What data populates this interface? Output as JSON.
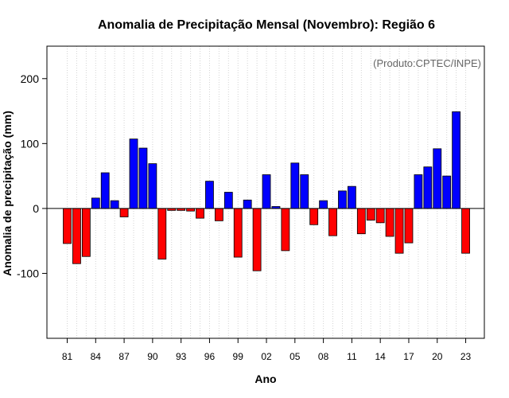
{
  "chart_data": {
    "type": "bar",
    "title": "Anomalia de Precipitação Mensal (Novembro): Região 6",
    "xlabel": "Ano",
    "ylabel": "Anomalia de precipitação (mm)",
    "credit": "(Produto:CPTEC/INPE)",
    "ylim": [
      -200,
      250
    ],
    "yticks": [
      -100,
      0,
      100,
      200
    ],
    "grid": true,
    "categories": [
      "81",
      "82",
      "83",
      "84",
      "85",
      "86",
      "87",
      "88",
      "89",
      "90",
      "91",
      "92",
      "93",
      "94",
      "95",
      "96",
      "97",
      "98",
      "99",
      "00",
      "01",
      "02",
      "03",
      "04",
      "05",
      "06",
      "07",
      "08",
      "09",
      "10",
      "11",
      "12",
      "13",
      "14",
      "15",
      "16",
      "17",
      "18",
      "19",
      "20",
      "21",
      "22",
      "23"
    ],
    "xtick_labels": [
      "81",
      "84",
      "87",
      "90",
      "93",
      "96",
      "99",
      "02",
      "05",
      "08",
      "11",
      "14",
      "17",
      "20",
      "23"
    ],
    "values": [
      -54,
      -85,
      -74,
      16,
      55,
      12,
      -13,
      107,
      93,
      69,
      -78,
      -3,
      -3,
      -4,
      -15,
      42,
      -19,
      25,
      -75,
      13,
      -96,
      52,
      3,
      -65,
      70,
      52,
      -25,
      12,
      -42,
      27,
      34,
      -39,
      -18,
      -22,
      -43,
      -69,
      -53,
      52,
      64,
      92,
      50,
      149,
      -69
    ],
    "colors": {
      "positive": "#0000ff",
      "negative": "#ff0000",
      "frame": "#000000",
      "grid": "#d3d3d3"
    }
  }
}
